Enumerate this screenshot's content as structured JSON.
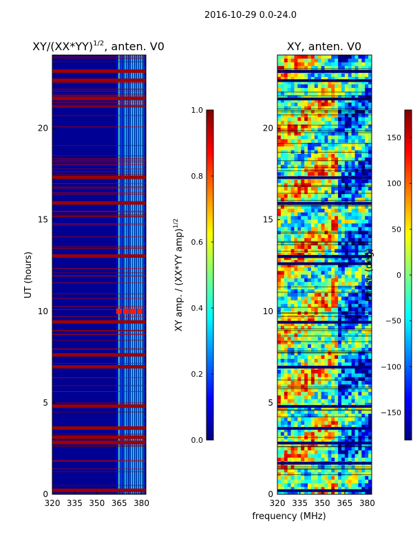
{
  "figure_title": "2016-10-29 0.0-24.0",
  "shared_xlabel": "frequency (MHz)",
  "colormap": [
    "#00007f",
    "#0000ff",
    "#007fff",
    "#00ffff",
    "#7fff7f",
    "#ffff00",
    "#ff7f00",
    "#ff0000",
    "#7f0000"
  ],
  "chart_data": [
    {
      "type": "heatmap",
      "title": "XY/(XX*YY)",
      "title_exponent": "1/2",
      "title_suffix": ", anten. V0",
      "xlabel": "",
      "ylabel": "UT (hours)",
      "xlim": [
        320,
        383
      ],
      "ylim": [
        0,
        24
      ],
      "xticks": [
        320,
        335,
        350,
        365,
        380
      ],
      "yticks": [
        0,
        5,
        10,
        15,
        20
      ],
      "colorbar": {
        "label": "XY amp. / (XX*YY amp)",
        "label_exponent": "1/2",
        "range": [
          0.0,
          1.0
        ],
        "ticks": [
          "0.0",
          "0.2",
          "0.4",
          "0.6",
          "0.8",
          "1.0"
        ]
      },
      "saturated_bands_hours": [
        0.2,
        2.8,
        3.1,
        3.6,
        4.8,
        6.95,
        7.6,
        9.4,
        13.0,
        15.9,
        17.3,
        21.6,
        22.6,
        23.1
      ],
      "bright_feature": {
        "freq_mhz_range": [
          363,
          380
        ],
        "ut_hours": 10.0
      }
    },
    {
      "type": "heatmap",
      "title": "XY, anten. V0",
      "xlabel": "frequency (MHz)",
      "ylabel": "",
      "xlim": [
        320,
        383
      ],
      "ylim": [
        0,
        24
      ],
      "xticks": [
        320,
        335,
        350,
        365,
        380
      ],
      "yticks": [
        0,
        5,
        10,
        15,
        20
      ],
      "colorbar": {
        "label": "Phase (deg)",
        "range": [
          -180,
          180
        ],
        "ticks": [
          "−150",
          "−100",
          "−50",
          "0",
          "50",
          "100",
          "150"
        ]
      },
      "dark_bands_hours": [
        0.2,
        1.7,
        2.8,
        3.6,
        4.8,
        6.95,
        9.4,
        12.6,
        13.0,
        15.9,
        17.3,
        21.6,
        22.6,
        23.1
      ]
    }
  ]
}
